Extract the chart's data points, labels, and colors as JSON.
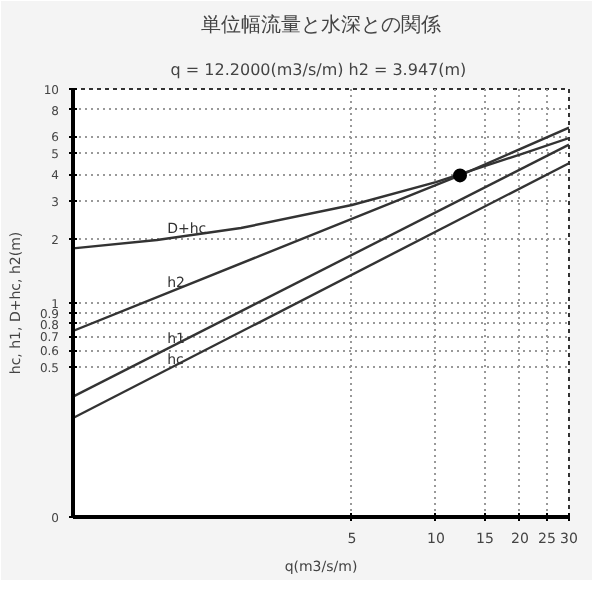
{
  "chart_data": {
    "type": "line",
    "title": "単位幅流量と水深との関係",
    "subtitle": "q = 12.2000(m3/s/m)  h2 = 3.947(m)",
    "xlabel": "q(m3/s/m)",
    "ylabel": "hc, h1, D+hc, h2(m)",
    "log": "xy",
    "grid": true,
    "marker": "none",
    "line_style": "solid",
    "xlim": [
      0.5,
      30
    ],
    "xticks": [
      5,
      10,
      15,
      20,
      25,
      30
    ],
    "ylim": [
      0.1,
      10
    ],
    "yticks": [
      {
        "value": 0.1,
        "label": "0"
      },
      0.5,
      0.6,
      0.7,
      0.8,
      0.9,
      1,
      2,
      3,
      4,
      5,
      6,
      8,
      10
    ],
    "series": [
      {
        "name": "D+hc",
        "color": "#333333",
        "x": [
          0.5,
          1,
          2,
          5,
          10,
          20,
          30
        ],
        "values": [
          1.8,
          1.97,
          2.24,
          2.87,
          3.67,
          4.94,
          5.9
        ]
      },
      {
        "name": "h2",
        "color": "#333333",
        "x": [
          0.5,
          12.2,
          30
        ],
        "values": [
          0.74,
          3.95,
          6.6
        ]
      },
      {
        "name": "h1",
        "color": "#333333",
        "x": [
          0.5,
          30
        ],
        "values": [
          0.365,
          5.5
        ]
      },
      {
        "name": "hc",
        "color": "#333333",
        "x": [
          0.5,
          30
        ],
        "values": [
          0.29,
          4.5
        ]
      },
      {
        "type": "scatter",
        "marker": "circle",
        "color": "#000000",
        "x": [
          12.2
        ],
        "values": [
          3.947
        ]
      }
    ]
  }
}
